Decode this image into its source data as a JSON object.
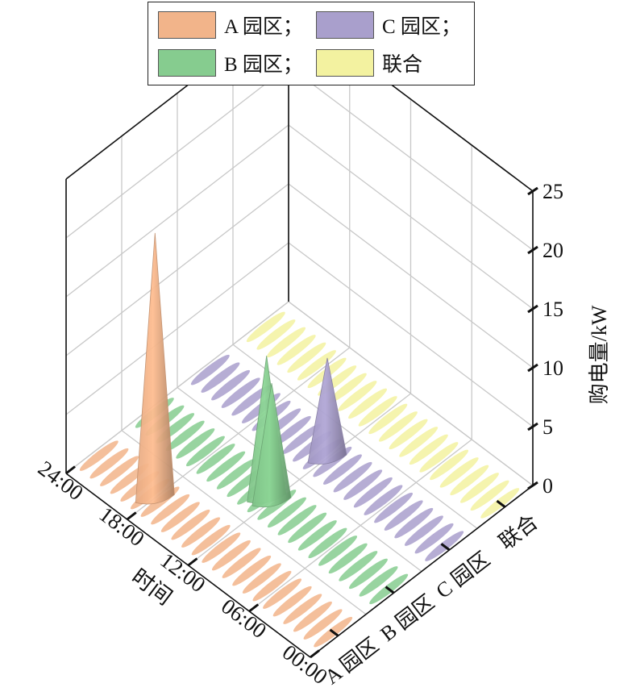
{
  "chart_data": {
    "type": "3d-peaks",
    "zlabel": "购电量/kW",
    "xlabel": "时间",
    "zlim": [
      0,
      25
    ],
    "z_ticks": [
      "0",
      "5",
      "10",
      "15",
      "20",
      "25"
    ],
    "time_ticks": [
      "00:00",
      "06:00",
      "12:00",
      "18:00",
      "24:00"
    ],
    "categories": [
      "A 园区",
      "B 园区",
      "C 园区",
      "联合"
    ],
    "legend": [
      "A 园区；",
      "C 园区；",
      "B 园区；",
      "联合"
    ],
    "grid": true,
    "legend_position": "top",
    "series": [
      {
        "name": "A 园区",
        "color": "#f2b48a",
        "peaks": [
          {
            "time": "18:00",
            "value": 22.5
          }
        ]
      },
      {
        "name": "B 园区",
        "color": "#86cc8f",
        "peaks": [
          {
            "time": "12:00",
            "value": 10
          },
          {
            "time": "12:30",
            "value": 12
          }
        ]
      },
      {
        "name": "C 园区",
        "color": "#a99fcc",
        "peaks": [
          {
            "time": "12:00",
            "value": 8.5
          }
        ]
      },
      {
        "name": "联合",
        "color": "#f3f2a0",
        "peaks": []
      }
    ]
  }
}
